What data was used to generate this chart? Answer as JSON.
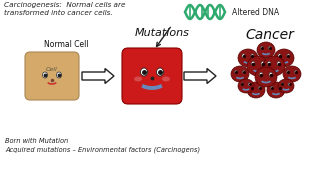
{
  "bg_color": "#2a2a2a",
  "title_line1": "Carcinogenesis:  Normal cells are",
  "title_line2": "transformed into cancer cells.",
  "label_normal": "Normal Cell",
  "label_mutations": "Mutations",
  "label_cancer": "Cancer",
  "label_dna": "Altered DNA",
  "label_born": "Born with Mutation",
  "label_acquired": "Acquired mutations – Environmental factors (Carcinogens)",
  "normal_cell_color": "#d4a96a",
  "mutated_cell_color": "#cc1a1a",
  "cancer_color": "#8b1515",
  "cancer_edge": "#5a0a0a",
  "arrow_fill": "#ffffff",
  "arrow_edge": "#111111",
  "dna_color": "#2eaa6e",
  "text_color": "#e8e8e8",
  "title_color": "#dddddd",
  "cancer_label_color": "#111111",
  "face_smile_color": "#6688bb",
  "normal_face_color": "#996633",
  "cell_label_color": "#555555",
  "bottom_text_color": "#cccccc"
}
